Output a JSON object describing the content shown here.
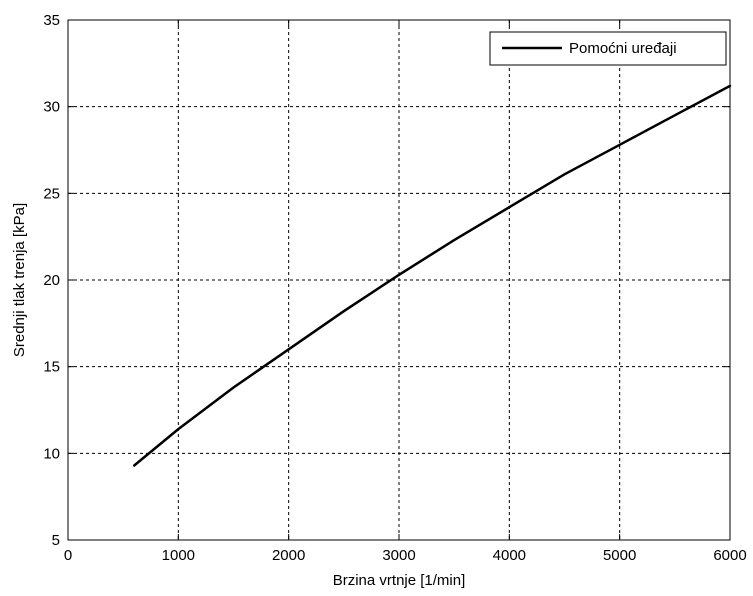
{
  "chart_data": {
    "type": "line",
    "title": "",
    "xlabel": "Brzina vrtnje [1/min]",
    "ylabel": "Srednji tlak trenja [kPa]",
    "xlim": [
      0,
      6000
    ],
    "ylim": [
      5,
      35
    ],
    "xticks": [
      0,
      1000,
      2000,
      3000,
      4000,
      5000,
      6000
    ],
    "yticks": [
      5,
      10,
      15,
      20,
      25,
      30,
      35
    ],
    "grid": true,
    "legend_position": "top-right",
    "series": [
      {
        "name": "Pomoćni uređaji",
        "color": "#000000",
        "x": [
          600,
          1000,
          1500,
          2000,
          2500,
          3000,
          3500,
          4000,
          4500,
          5000,
          5500,
          6000
        ],
        "y": [
          9.3,
          11.4,
          13.8,
          16.0,
          18.2,
          20.3,
          22.3,
          24.2,
          26.1,
          27.8,
          29.5,
          31.2
        ]
      }
    ]
  }
}
